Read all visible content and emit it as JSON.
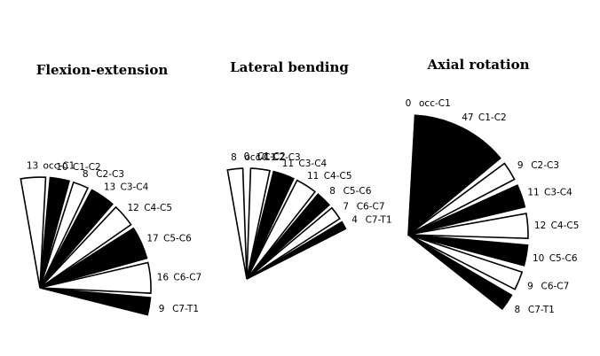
{
  "chart_data": [
    {
      "type": "fan",
      "title": "Flexion-extension",
      "unit": "degrees",
      "segments": [
        {
          "label": "occ-C1",
          "value": 13,
          "fill": "white"
        },
        {
          "label": "C1-C2",
          "value": 10,
          "fill": "black"
        },
        {
          "label": "C2-C3",
          "value": 8,
          "fill": "white"
        },
        {
          "label": "C3-C4",
          "value": 13,
          "fill": "black"
        },
        {
          "label": "C4-C5",
          "value": 12,
          "fill": "white"
        },
        {
          "label": "C5-C6",
          "value": 17,
          "fill": "black"
        },
        {
          "label": "C6-C7",
          "value": 16,
          "fill": "white"
        },
        {
          "label": "C7-T1",
          "value": 9,
          "fill": "black"
        }
      ]
    },
    {
      "type": "fan",
      "title": "Lateral bending",
      "unit": "degrees",
      "segments": [
        {
          "label": "occ-C1",
          "value": 8,
          "fill": "white"
        },
        {
          "label": "C1-C2",
          "value": 0,
          "fill": "white"
        },
        {
          "label": "C2-C3",
          "value": 10,
          "fill": "white"
        },
        {
          "label": "C3-C4",
          "value": 11,
          "fill": "black"
        },
        {
          "label": "C4-C5",
          "value": 11,
          "fill": "white"
        },
        {
          "label": "C5-C6",
          "value": 8,
          "fill": "black"
        },
        {
          "label": "C6-C7",
          "value": 7,
          "fill": "white"
        },
        {
          "label": "C7-T1",
          "value": 4,
          "fill": "black"
        }
      ]
    },
    {
      "type": "fan",
      "title": "Axial rotation",
      "unit": "degrees",
      "segments": [
        {
          "label": "occ-C1",
          "value": 0,
          "fill": "white"
        },
        {
          "label": "C1-C2",
          "value": 47,
          "fill": "black"
        },
        {
          "label": "C2-C3",
          "value": 9,
          "fill": "white"
        },
        {
          "label": "C3-C4",
          "value": 11,
          "fill": "black"
        },
        {
          "label": "C4-C5",
          "value": 12,
          "fill": "white"
        },
        {
          "label": "C5-C6",
          "value": 10,
          "fill": "black"
        },
        {
          "label": "C6-C7",
          "value": 9,
          "fill": "white"
        },
        {
          "label": "C7-T1",
          "value": 8,
          "fill": "black"
        }
      ]
    }
  ]
}
